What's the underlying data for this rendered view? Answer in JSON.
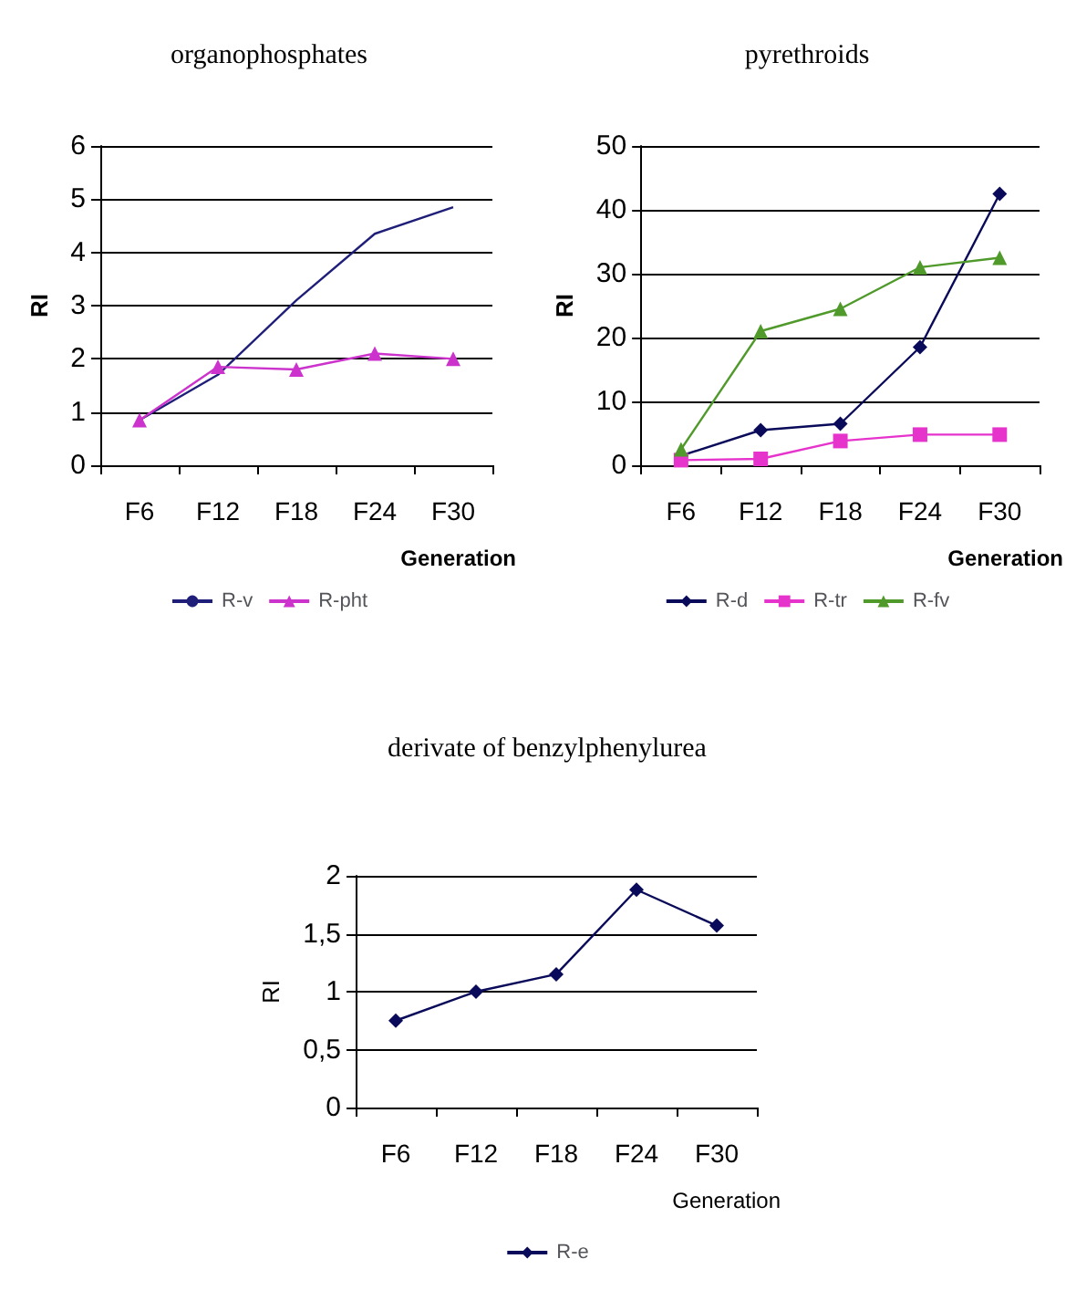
{
  "chart_data": [
    {
      "type": "line",
      "title": "organophosphates",
      "xlabel": "Generation",
      "ylabel": "RI",
      "categories": [
        "F6",
        "F12",
        "F18",
        "F24",
        "F30"
      ],
      "series": [
        {
          "name": "R-v",
          "color": "#1f1f7a",
          "marker": "none",
          "values": [
            0.85,
            1.7,
            3.1,
            4.35,
            4.85
          ]
        },
        {
          "name": "R-pht",
          "color": "#cc33cc",
          "marker": "triangle",
          "values": [
            0.85,
            1.85,
            1.8,
            2.1,
            2.0
          ]
        }
      ],
      "ylim": [
        0,
        6
      ],
      "yticks": [
        0,
        1,
        2,
        3,
        4,
        5,
        6
      ],
      "grid": "y",
      "legend": "bottom"
    },
    {
      "type": "line",
      "title": "pyrethroids",
      "xlabel": "Generation",
      "ylabel": "RI",
      "categories": [
        "F6",
        "F12",
        "F18",
        "F24",
        "F30"
      ],
      "series": [
        {
          "name": "R-d",
          "color": "#0a0a5a",
          "marker": "diamond",
          "values": [
            1.5,
            5.5,
            6.5,
            18.5,
            42.5
          ]
        },
        {
          "name": "R-tr",
          "color": "#e633cc",
          "marker": "square",
          "values": [
            0.8,
            1.0,
            3.8,
            4.8,
            4.8
          ]
        },
        {
          "name": "R-fv",
          "color": "#4f9a2a",
          "marker": "triangle",
          "values": [
            2.5,
            21,
            24.5,
            31,
            32.5
          ]
        }
      ],
      "ylim": [
        0,
        50
      ],
      "yticks": [
        0,
        10,
        20,
        30,
        40,
        50
      ],
      "grid": "y",
      "legend": "bottom"
    },
    {
      "type": "line",
      "title": "derivate of benzylphenylurea",
      "xlabel": "Generation",
      "ylabel": "RI",
      "categories": [
        "F6",
        "F12",
        "F18",
        "F24",
        "F30"
      ],
      "series": [
        {
          "name": "R-e",
          "color": "#0a0a5a",
          "marker": "diamond",
          "values": [
            0.75,
            1.0,
            1.15,
            1.88,
            1.57
          ]
        }
      ],
      "ylim": [
        0,
        2
      ],
      "yticks": [
        0,
        {
          "value": 0.5,
          "label": "0,5"
        },
        1,
        {
          "value": 1.5,
          "label": "1,5"
        },
        2
      ],
      "grid": "y",
      "legend": "bottom"
    }
  ]
}
